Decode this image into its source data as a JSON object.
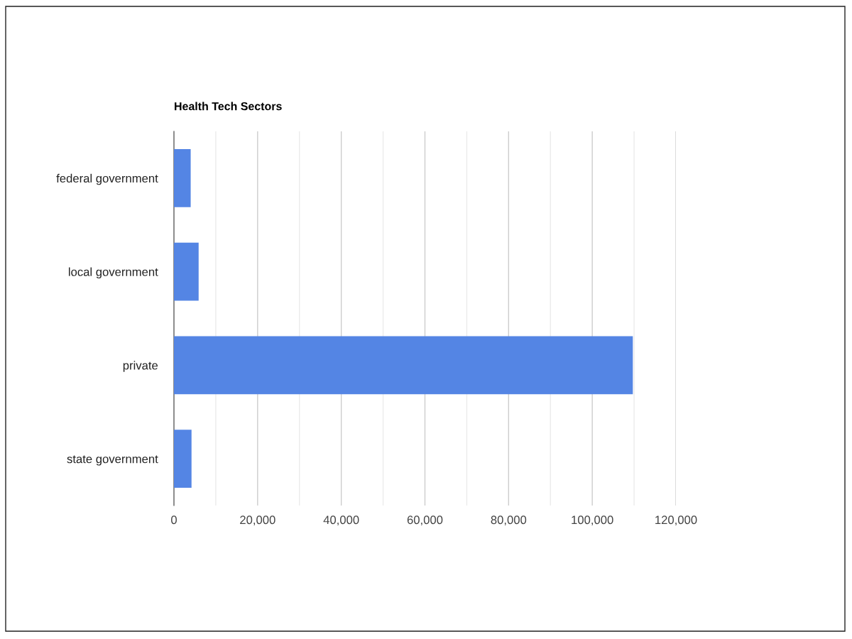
{
  "chart_data": {
    "type": "bar",
    "orientation": "horizontal",
    "title": "Health Tech Sectors",
    "categories": [
      "federal government",
      "local government",
      "private",
      "state government"
    ],
    "values": [
      4000,
      5900,
      109700,
      4200
    ],
    "color": "#5485e4",
    "xlim": [
      0,
      120000
    ],
    "xticks": [
      0,
      {
        "value": 10000,
        "label": null
      },
      {
        "value": 20000,
        "label": "20,000"
      },
      {
        "value": 30000,
        "label": null
      },
      {
        "value": 40000,
        "label": "40,000"
      },
      {
        "value": 50000,
        "label": null
      },
      {
        "value": 60000,
        "label": "60,000"
      },
      {
        "value": 70000,
        "label": null
      },
      {
        "value": 80000,
        "label": "80,000"
      },
      {
        "value": 90000,
        "label": null
      },
      {
        "value": 100000,
        "label": "100,000"
      },
      {
        "value": 110000,
        "label": null
      },
      {
        "value": 120000,
        "label": "120,000"
      }
    ],
    "grid": "x"
  }
}
